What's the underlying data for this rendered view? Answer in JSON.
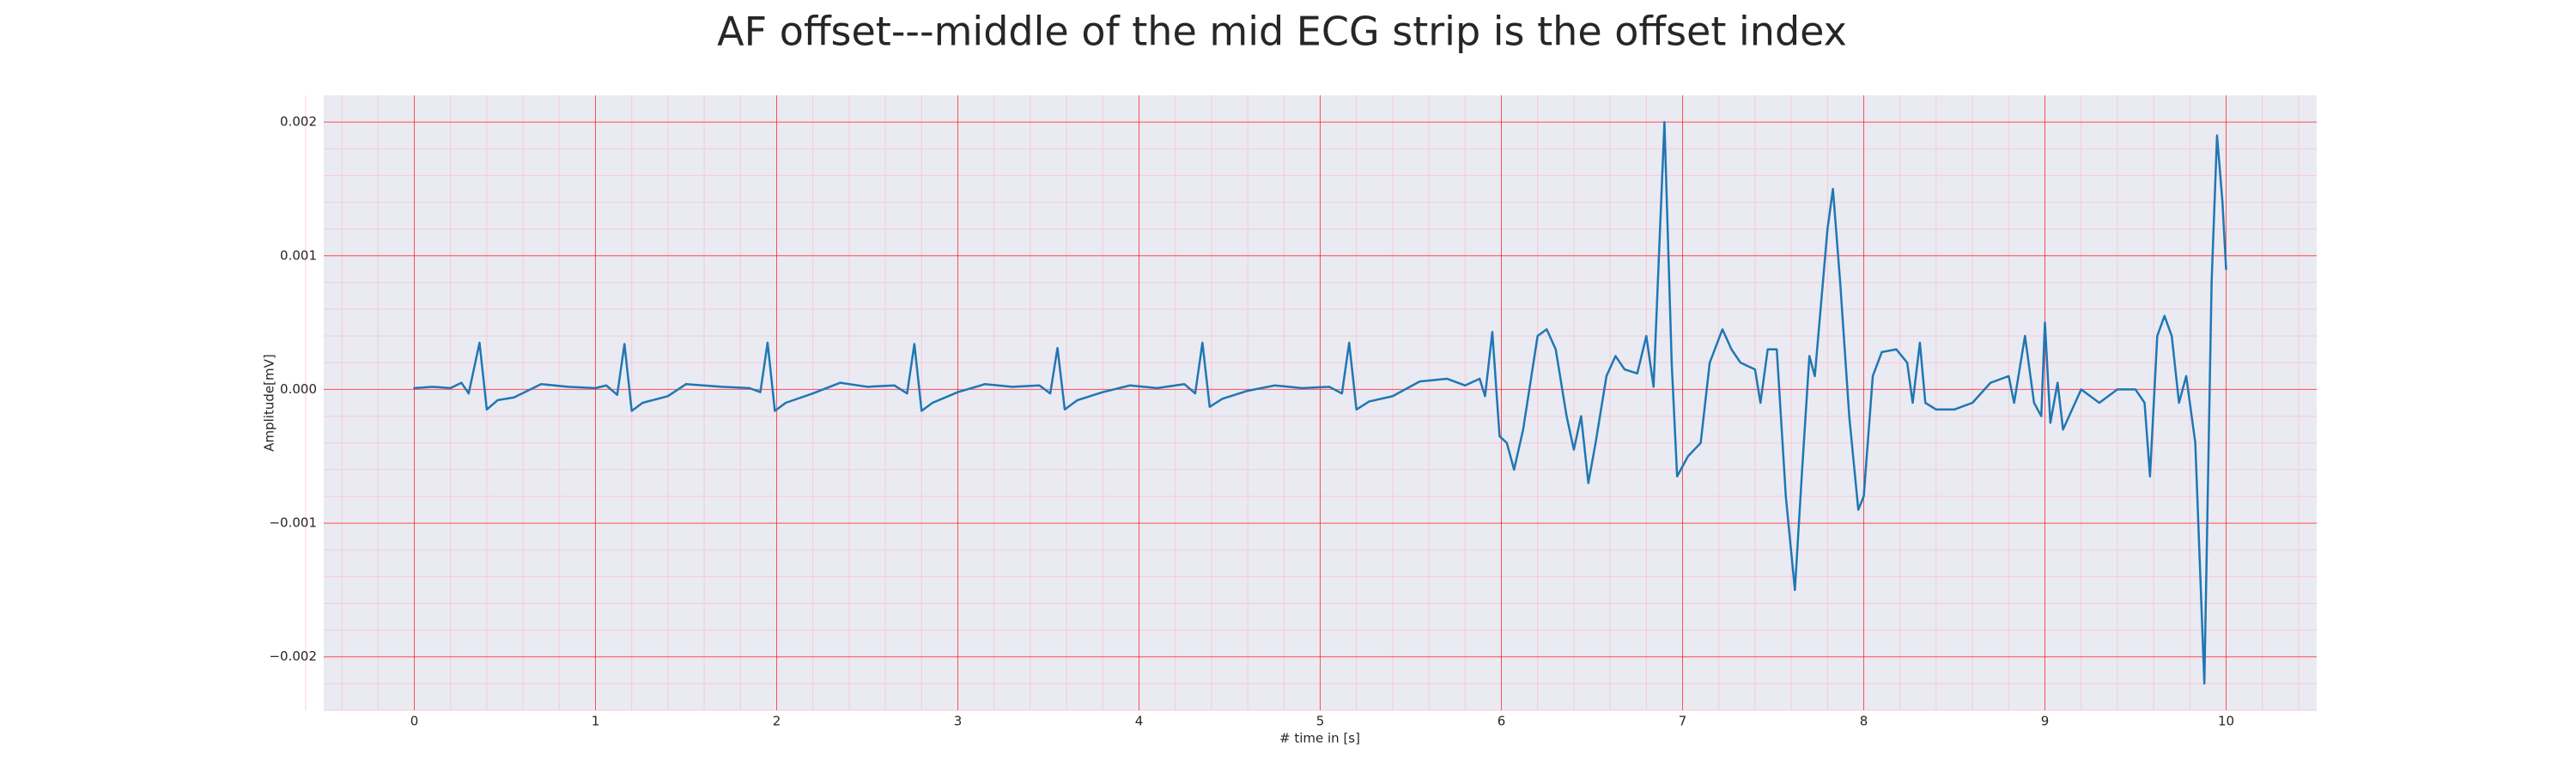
{
  "chart_data": {
    "type": "line",
    "title": "AF offset---middle of the mid ECG strip is the offset index",
    "xlabel": "# time in [s]",
    "ylabel": "Amplitude[mV]",
    "color": "#1f77b4",
    "grid": true,
    "minor_grid": true,
    "xlim": [
      -0.5,
      10.5
    ],
    "ylim": [
      -0.0024,
      0.0022
    ],
    "xticks": [
      0,
      1,
      2,
      3,
      4,
      5,
      6,
      7,
      8,
      9,
      10
    ],
    "yticks": [
      {
        "value": -0.002,
        "label": "−0.002"
      },
      {
        "value": -0.001,
        "label": "−0.001"
      },
      {
        "value": 0,
        "label": "0.000"
      },
      0.001,
      0.002
    ],
    "x": [
      0,
      0.1,
      0.2,
      0.26,
      0.3,
      0.36,
      0.4,
      0.46,
      0.55,
      0.7,
      0.85,
      1.0,
      1.06,
      1.12,
      1.16,
      1.2,
      1.26,
      1.4,
      1.5,
      1.7,
      1.85,
      1.91,
      1.95,
      1.99,
      2.05,
      2.2,
      2.35,
      2.5,
      2.65,
      2.72,
      2.76,
      2.8,
      2.86,
      3.0,
      3.15,
      3.3,
      3.45,
      3.51,
      3.55,
      3.59,
      3.66,
      3.8,
      3.95,
      4.1,
      4.25,
      4.31,
      4.35,
      4.39,
      4.46,
      4.6,
      4.75,
      4.9,
      5.05,
      5.12,
      5.16,
      5.2,
      5.27,
      5.4,
      5.55,
      5.7,
      5.8,
      5.88,
      5.91,
      5.95,
      5.99,
      6.03,
      6.07,
      6.12,
      6.2,
      6.25,
      6.3,
      6.36,
      6.4,
      6.44,
      6.48,
      6.52,
      6.58,
      6.63,
      6.68,
      6.75,
      6.8,
      6.84,
      6.9,
      6.94,
      6.97,
      7.03,
      7.1,
      7.15,
      7.22,
      7.27,
      7.32,
      7.4,
      7.43,
      7.47,
      7.52,
      7.57,
      7.62,
      7.66,
      7.7,
      7.73,
      7.8,
      7.83,
      7.87,
      7.92,
      7.97,
      8.0,
      8.05,
      8.1,
      8.18,
      8.24,
      8.27,
      8.31,
      8.34,
      8.4,
      8.5,
      8.6,
      8.7,
      8.8,
      8.83,
      8.89,
      8.94,
      8.98,
      9.0,
      9.03,
      9.07,
      9.1,
      9.2,
      9.3,
      9.4,
      9.5,
      9.55,
      9.58,
      9.62,
      9.66,
      9.7,
      9.74,
      9.78,
      9.83,
      9.88,
      9.92,
      9.95,
      9.98,
      10.0
    ],
    "values": [
      1e-05,
      2e-05,
      1e-05,
      5e-05,
      -3e-05,
      0.00035,
      -0.00015,
      -8e-05,
      -6e-05,
      4e-05,
      2e-05,
      1e-05,
      3e-05,
      -4e-05,
      0.00034,
      -0.00016,
      -0.0001,
      -5e-05,
      4e-05,
      2e-05,
      1e-05,
      -2e-05,
      0.00035,
      -0.00016,
      -0.0001,
      -3e-05,
      5e-05,
      2e-05,
      3e-05,
      -3e-05,
      0.00034,
      -0.00016,
      -0.0001,
      -2e-05,
      4e-05,
      2e-05,
      3e-05,
      -3e-05,
      0.00031,
      -0.00015,
      -8e-05,
      -2e-05,
      3e-05,
      1e-05,
      4e-05,
      -3e-05,
      0.00035,
      -0.00013,
      -7e-05,
      -1e-05,
      3e-05,
      1e-05,
      2e-05,
      -3e-05,
      0.00035,
      -0.00015,
      -9e-05,
      -5e-05,
      6e-05,
      8e-05,
      3e-05,
      8e-05,
      -5e-05,
      0.00043,
      -0.00035,
      -0.0004,
      -0.0006,
      -0.0003,
      0.0004,
      0.00045,
      0.0003,
      -0.0002,
      -0.00045,
      -0.0002,
      -0.0007,
      -0.0004,
      0.0001,
      0.00025,
      0.00015,
      0.00012,
      0.0004,
      2e-05,
      0.002,
      0.0002,
      -0.00065,
      -0.0005,
      -0.0004,
      0.0002,
      0.00045,
      0.0003,
      0.0002,
      0.00015,
      -0.0001,
      0.0003,
      0.0003,
      -0.0008,
      -0.0015,
      -0.0006,
      0.00025,
      0.0001,
      0.0012,
      0.0015,
      0.0008,
      -0.0002,
      -0.0009,
      -0.0008,
      0.0001,
      0.00028,
      0.0003,
      0.0002,
      -0.0001,
      0.00035,
      -0.0001,
      -0.00015,
      -0.00015,
      -0.0001,
      5e-05,
      0.0001,
      -0.0001,
      0.0004,
      -0.0001,
      -0.0002,
      0.0005,
      -0.00025,
      5e-05,
      -0.0003,
      0,
      -0.0001,
      0,
      0,
      -0.0001,
      -0.00065,
      0.0004,
      0.00055,
      0.0004,
      -0.0001,
      0.0001,
      -0.0004,
      -0.0022,
      0.0008,
      0.0019,
      0.0014,
      0.0009
    ]
  }
}
